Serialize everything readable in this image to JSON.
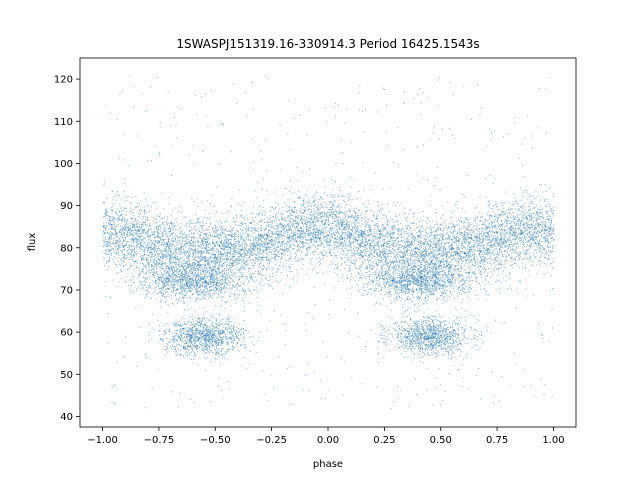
{
  "chart_data": {
    "type": "scatter",
    "title": "1SWASPJ151319.16-330914.3 Period 16425.1543s",
    "xlabel": "phase",
    "ylabel": "flux",
    "xlim": [
      -1.1,
      1.1
    ],
    "ylim": [
      37.5,
      125
    ],
    "xticks": [
      -1.0,
      -0.75,
      -0.5,
      -0.25,
      0.0,
      0.25,
      0.5,
      0.75,
      1.0
    ],
    "xtick_labels": [
      "−1.00",
      "−0.75",
      "−0.50",
      "−0.25",
      "0.00",
      "0.25",
      "0.50",
      "0.75",
      "1.00"
    ],
    "yticks": [
      40,
      50,
      60,
      70,
      80,
      90,
      100,
      110,
      120
    ],
    "ytick_labels": [
      "40",
      "50",
      "60",
      "70",
      "80",
      "90",
      "100",
      "110",
      "120"
    ],
    "grid": false,
    "legend": "none",
    "marker_color": "#1f77b4",
    "phase_range": [
      -1.0,
      1.0
    ],
    "envelope_phase": [
      -1.0,
      -0.85,
      -0.75,
      -0.65,
      -0.55,
      -0.45,
      -0.35,
      -0.25,
      -0.15,
      -0.05,
      0.0,
      0.05,
      0.15,
      0.25,
      0.35,
      0.45,
      0.55,
      0.65,
      0.75,
      0.85,
      1.0
    ],
    "baseline_flux": [
      84,
      82,
      80,
      79,
      79,
      79,
      80,
      82,
      84,
      85,
      85,
      84,
      82,
      80,
      79,
      79,
      79,
      80,
      82,
      84,
      84
    ],
    "baseline_scatter": 4,
    "dip_components": [
      {
        "name_hidden": "",
        "phase_center": -0.6,
        "width": 0.12,
        "flux": 72
      },
      {
        "name_hidden": "",
        "phase_center": -0.55,
        "width": 0.09,
        "flux": 59
      },
      {
        "name_hidden": "",
        "phase_center": 0.4,
        "width": 0.12,
        "flux": 72
      },
      {
        "name_hidden": "",
        "phase_center": 0.45,
        "width": 0.09,
        "flux": 59
      }
    ],
    "outlier_range": [
      42,
      121
    ]
  }
}
